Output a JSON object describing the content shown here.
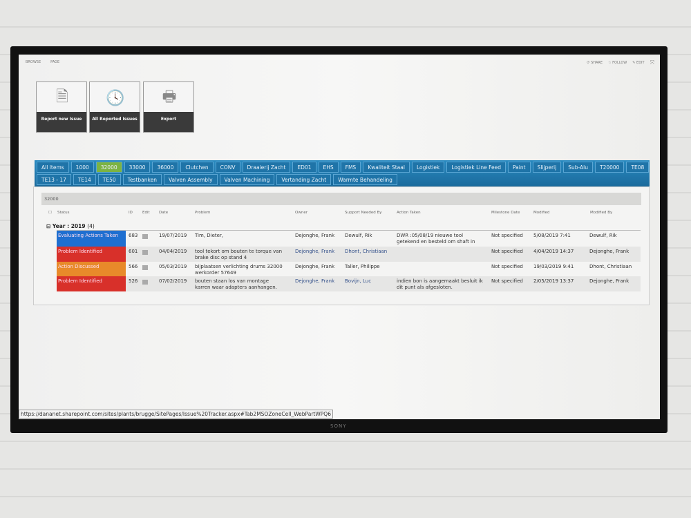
{
  "topbar": {
    "left": [
      "BROWSE",
      "PAGE"
    ],
    "share": "SHARE",
    "follow": "FOLLOW",
    "edit": "EDIT"
  },
  "tiles": [
    {
      "label": "Report new Issue",
      "icon": "new-document-icon"
    },
    {
      "label": "All Reported Issues",
      "icon": "clock-folder-icon"
    },
    {
      "label": "Export",
      "icon": "printer-icon"
    }
  ],
  "tabs": {
    "row1": [
      "All Items",
      "1000",
      "32000",
      "33000",
      "36000",
      "Clutchen",
      "CONV",
      "Draaierij Zacht",
      "ED01",
      "EHS",
      "FMS",
      "Kwaliteit Staal",
      "Logistiek",
      "Logistiek Line Feed",
      "Paint",
      "Slijperij",
      "Sub-Alu",
      "T20000",
      "TE08"
    ],
    "row2": [
      "TE13 - 17",
      "TE14",
      "TE50",
      "Testbanken",
      "Valven Assembly",
      "Valven Machining",
      "Vertanding Zacht",
      "Warmte Behandeling"
    ],
    "active": "32000"
  },
  "filter": "32000",
  "columns": [
    "Status",
    "ID",
    "Edit",
    "Date",
    "Problem",
    "Owner",
    "Support Needed By",
    "Action Taken",
    "Milestone Date",
    "Modified",
    "Modified By"
  ],
  "group": {
    "label": "Year : 2019",
    "count": "(4)"
  },
  "rows": [
    {
      "status": "Evaluating Actions Taken",
      "color": "#1f6fd0",
      "id": "683",
      "date": "19/07/2019",
      "problem": "Tim, Dieter,",
      "owner": "Dejonghe, Frank",
      "support": "Dewulf, Rik",
      "action": "DWR :05/08/19 nieuwe tool getekend en besteld om shaft in",
      "milestone": "Not specified",
      "modified": "5/08/2019 7:41",
      "modified_by": "Dewulf, Rik"
    },
    {
      "status": "Problem Identified",
      "color": "#d8302a",
      "id": "601",
      "date": "04/04/2019",
      "problem": "tool tekort om bouten te torque van brake disc op stand 4",
      "owner": "Dejonghe, Frank",
      "support": "Dhont, Christiaan",
      "action": "",
      "milestone": "Not specified",
      "modified": "4/04/2019 14:37",
      "modified_by": "Dejonghe, Frank"
    },
    {
      "status": "Action Discussed",
      "color": "#e88a2a",
      "id": "566",
      "date": "05/03/2019",
      "problem": "bijplaatsen verlichting drums 32000 werkorder 57649",
      "owner": "Dejonghe, Frank",
      "support": "Taller, Philippe",
      "action": "",
      "milestone": "Not specified",
      "modified": "19/03/2019 9:41",
      "modified_by": "Dhont, Christiaan"
    },
    {
      "status": "Problem Identified",
      "color": "#d8302a",
      "id": "526",
      "date": "07/02/2019",
      "problem": "bouten staan los van montage karren waar adapters aanhangen.",
      "owner": "Dejonghe, Frank",
      "support": "Bovijn, Luc",
      "action": "indien bon is aangemaakt besluit ik dit punt als afgesloten.",
      "milestone": "Not specified",
      "modified": "2/05/2019 13:37",
      "modified_by": "Dejonghe, Frank"
    }
  ],
  "status_url": "https://dananet.sharepoint.com/sites/plants/brugge/SitePages/Issue%20Tracker.aspx#Tab2MSOZoneCell_WebPartWPQ6",
  "brand": "SONY"
}
